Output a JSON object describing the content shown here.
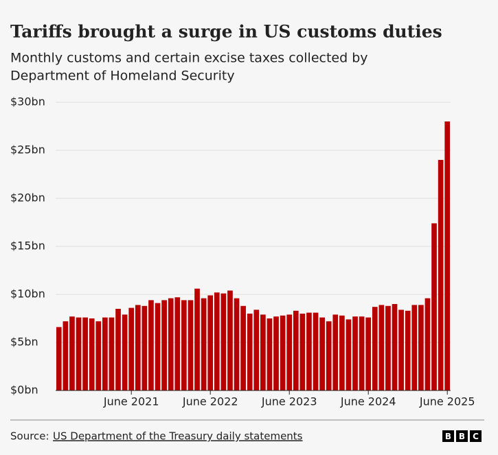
{
  "chart_data": {
    "type": "bar",
    "title": "Tariffs brought a surge in US customs duties",
    "subtitle": [
      "Monthly customs and certain excise taxes collected by",
      "Department of Homeland Security"
    ],
    "categories": [
      null,
      null,
      null,
      null,
      null,
      null,
      null,
      null,
      null,
      null,
      null,
      "June 2021",
      null,
      null,
      null,
      null,
      null,
      null,
      null,
      null,
      null,
      null,
      null,
      "June 2022",
      null,
      null,
      null,
      null,
      null,
      null,
      null,
      null,
      null,
      null,
      null,
      "June 2023",
      null,
      null,
      null,
      null,
      null,
      null,
      null,
      null,
      null,
      null,
      null,
      "June 2024",
      null,
      null,
      null,
      null,
      null,
      null,
      null,
      null,
      null,
      null,
      null,
      "June 2025"
    ],
    "values": [
      6.6,
      7.2,
      7.7,
      7.6,
      7.6,
      7.5,
      7.2,
      7.6,
      7.6,
      8.5,
      7.9,
      8.6,
      8.9,
      8.8,
      9.4,
      9.1,
      9.4,
      9.6,
      9.7,
      9.4,
      9.4,
      10.6,
      9.6,
      9.9,
      10.2,
      10.1,
      10.4,
      9.6,
      8.8,
      8.0,
      8.4,
      7.9,
      7.5,
      7.7,
      7.8,
      7.9,
      8.3,
      8.0,
      8.1,
      8.1,
      7.6,
      7.2,
      7.9,
      7.8,
      7.4,
      7.7,
      7.7,
      7.6,
      8.7,
      8.9,
      8.8,
      9.0,
      8.4,
      8.3,
      8.9,
      8.9,
      9.6,
      17.4,
      24.0,
      28.0
    ],
    "color": "#b80000",
    "ylim": [
      0,
      30
    ],
    "yticks": [
      {
        "value": 0,
        "label": "$0bn"
      },
      {
        "value": 5,
        "label": "$5bn"
      },
      {
        "value": 10,
        "label": "$10bn"
      },
      {
        "value": 15,
        "label": "$15bn"
      },
      {
        "value": 20,
        "label": "$20bn"
      },
      {
        "value": 25,
        "label": "$25bn"
      },
      {
        "value": 30,
        "label": "$30bn"
      }
    ],
    "grid": true,
    "source_label": "Source:",
    "source_link": "US Department of the Treasury daily statements",
    "logo": [
      "B",
      "B",
      "C"
    ]
  }
}
